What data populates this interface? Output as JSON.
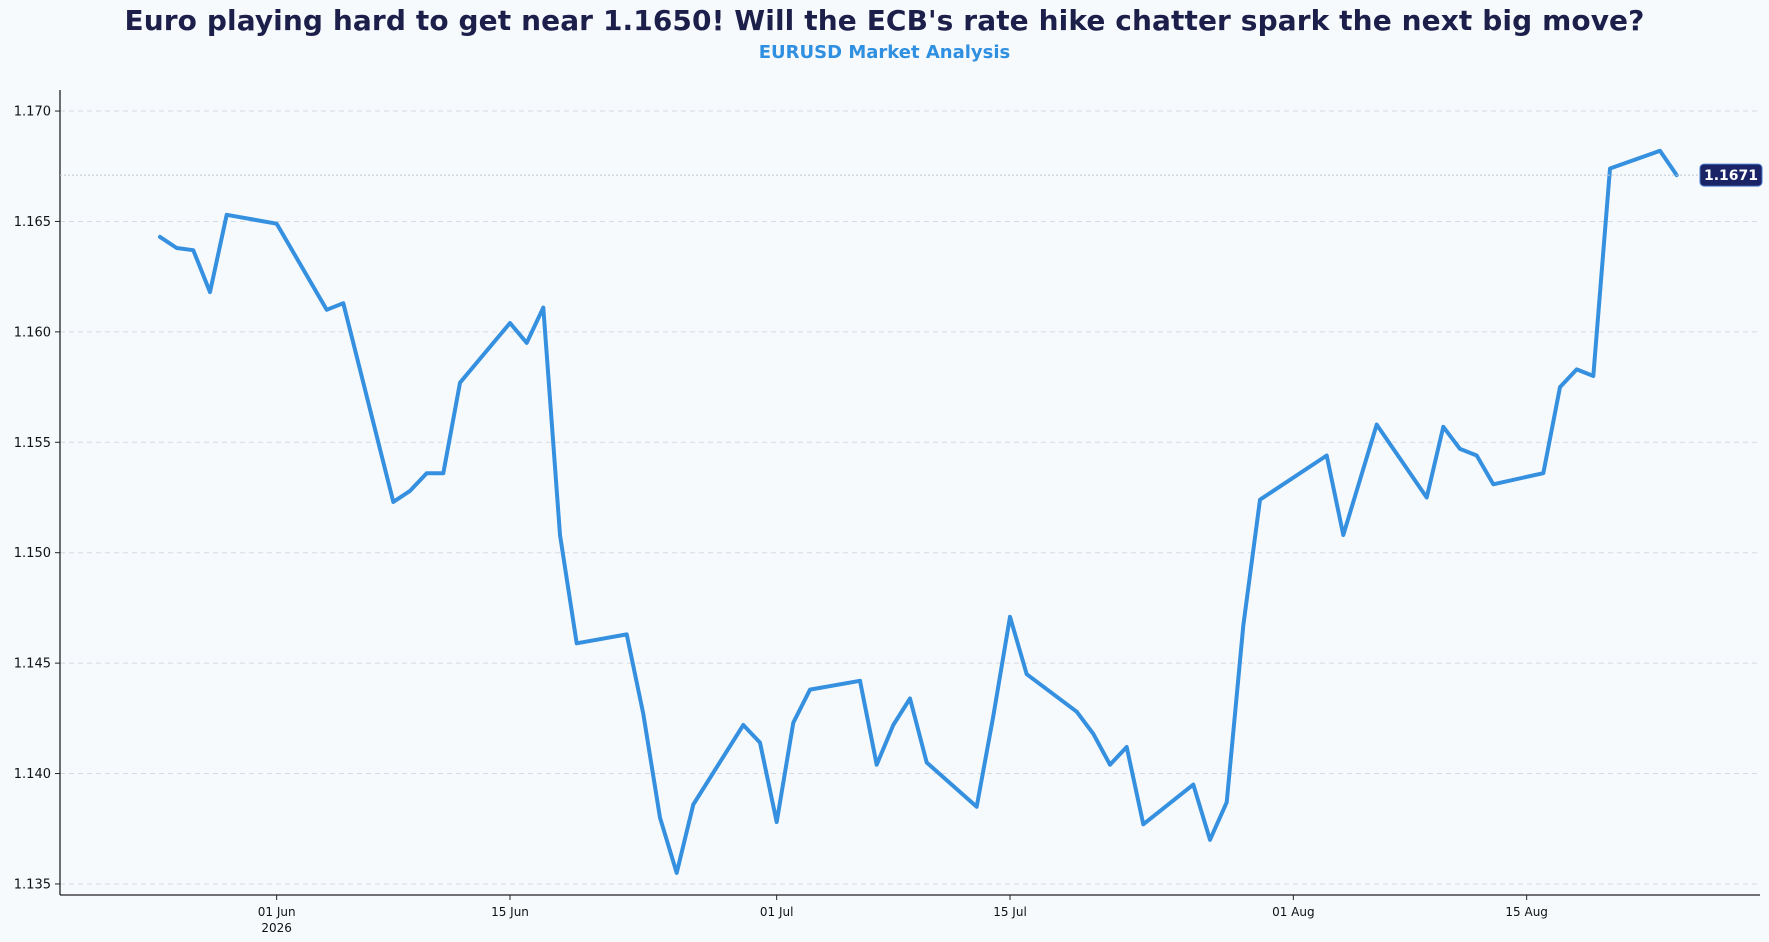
{
  "title": "Euro playing hard to get near 1.1650! Will the ECB's rate hike chatter spark the next big move?",
  "subtitle": "EURUSD Market Analysis",
  "colors": {
    "background": "#f7fafd",
    "line": "#3590e0",
    "title": "#1c1f4a",
    "subtitle": "#2f8fe0",
    "badge": "#1a2366"
  },
  "chart_data": {
    "type": "line",
    "title": "Euro playing hard to get near 1.1650! Will the ECB's rate hike chatter spark the next big move?",
    "subtitle": "EURUSD Market Analysis",
    "xlabel": "",
    "ylabel": "",
    "ylim": [
      1.1345,
      1.1705
    ],
    "xlim": [
      "2026-05-19",
      "2026-08-29"
    ],
    "yticks": [
      "1.135",
      "1.140",
      "1.145",
      "1.150",
      "1.155",
      "1.160",
      "1.165",
      "1.170"
    ],
    "xticks": [
      {
        "date": "2026-06-01",
        "label": "01 Jun",
        "sublabel": "2026"
      },
      {
        "date": "2026-06-15",
        "label": "15 Jun",
        "sublabel": ""
      },
      {
        "date": "2026-07-01",
        "label": "01 Jul",
        "sublabel": ""
      },
      {
        "date": "2026-07-15",
        "label": "15 Jul",
        "sublabel": ""
      },
      {
        "date": "2026-08-01",
        "label": "01 Aug",
        "sublabel": ""
      },
      {
        "date": "2026-08-15",
        "label": "15 Aug",
        "sublabel": ""
      }
    ],
    "grid": "horizontal dashed",
    "last_value_label": "1.1671",
    "series": [
      {
        "x": [
          "2026-05-25",
          "2026-05-26",
          "2026-05-27",
          "2026-05-28",
          "2026-05-29",
          "2026-06-01",
          "2026-06-04",
          "2026-06-05",
          "2026-06-08",
          "2026-06-09",
          "2026-06-10",
          "2026-06-11",
          "2026-06-12",
          "2026-06-15",
          "2026-06-16",
          "2026-06-17",
          "2026-06-18",
          "2026-06-19",
          "2026-06-22",
          "2026-06-23",
          "2026-06-24",
          "2026-06-25",
          "2026-06-26",
          "2026-06-29",
          "2026-06-30",
          "2026-07-01",
          "2026-07-02",
          "2026-07-03",
          "2026-07-06",
          "2026-07-07",
          "2026-07-08",
          "2026-07-09",
          "2026-07-10",
          "2026-07-13",
          "2026-07-14",
          "2026-07-15",
          "2026-07-16",
          "2026-07-19",
          "2026-07-20",
          "2026-07-21",
          "2026-07-22",
          "2026-07-23",
          "2026-07-26",
          "2026-07-27",
          "2026-07-28",
          "2026-07-29",
          "2026-07-30",
          "2026-08-03",
          "2026-08-04",
          "2026-08-05",
          "2026-08-06",
          "2026-08-09",
          "2026-08-10",
          "2026-08-11",
          "2026-08-12",
          "2026-08-13",
          "2026-08-16",
          "2026-08-17",
          "2026-08-18",
          "2026-08-19",
          "2026-08-20",
          "2026-08-23",
          "2026-08-24"
        ],
        "values": [
          1.1643,
          1.1638,
          1.1637,
          1.1618,
          1.1653,
          1.1649,
          1.161,
          1.1613,
          1.1523,
          1.1528,
          1.1536,
          1.1536,
          1.1577,
          1.1604,
          1.1595,
          1.1611,
          1.1508,
          1.1459,
          1.1463,
          1.1427,
          1.138,
          1.1355,
          1.1386,
          1.1422,
          1.1414,
          1.1378,
          1.1423,
          1.1438,
          1.1442,
          1.1404,
          1.1422,
          1.1434,
          1.1405,
          1.1385,
          1.1426,
          1.1471,
          1.1445,
          1.1428,
          1.1418,
          1.1404,
          1.1412,
          1.1377,
          1.1395,
          1.137,
          1.1387,
          1.1467,
          1.1524,
          1.1544,
          1.1508,
          1.1533,
          1.1558,
          1.1525,
          1.1557,
          1.1547,
          1.1544,
          1.1531,
          1.1536,
          1.1575,
          1.1583,
          1.158,
          1.1674,
          1.1682,
          1.1671
        ]
      }
    ]
  }
}
